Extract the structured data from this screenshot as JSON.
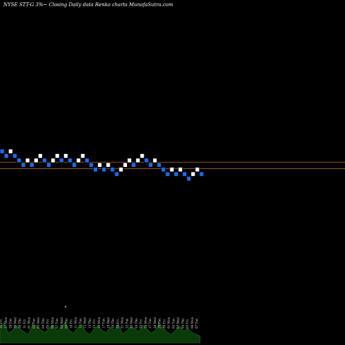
{
  "header": {
    "title": "NYSE STT-G 3%~  Closing Daily data  Renko  charts MunafaSutra.com"
  },
  "colors": {
    "background": "#000000",
    "up_brick": "#ffffff",
    "down_brick": "#1a6cf0",
    "brick_outline": "#000000",
    "ref_line": "#c8782a",
    "volume_fill": "#0a3a0a",
    "volume_edge": "#1e6e1e"
  },
  "chart_data": {
    "type": "renko",
    "brick_size": 1,
    "bricks": [
      {
        "level": 10,
        "dir": "down"
      },
      {
        "level": 9,
        "dir": "down"
      },
      {
        "level": 10,
        "dir": "up"
      },
      {
        "level": 9,
        "dir": "down"
      },
      {
        "level": 8,
        "dir": "down"
      },
      {
        "level": 7,
        "dir": "down"
      },
      {
        "level": 8,
        "dir": "up"
      },
      {
        "level": 7,
        "dir": "down"
      },
      {
        "level": 8,
        "dir": "up"
      },
      {
        "level": 9,
        "dir": "up"
      },
      {
        "level": 8,
        "dir": "down"
      },
      {
        "level": 7,
        "dir": "down"
      },
      {
        "level": 8,
        "dir": "up"
      },
      {
        "level": 9,
        "dir": "up"
      },
      {
        "level": 8,
        "dir": "down"
      },
      {
        "level": 9,
        "dir": "up"
      },
      {
        "level": 8,
        "dir": "down"
      },
      {
        "level": 7,
        "dir": "down"
      },
      {
        "level": 8,
        "dir": "up"
      },
      {
        "level": 9,
        "dir": "up"
      },
      {
        "level": 8,
        "dir": "down"
      },
      {
        "level": 7,
        "dir": "down"
      },
      {
        "level": 6,
        "dir": "down"
      },
      {
        "level": 7,
        "dir": "up"
      },
      {
        "level": 6,
        "dir": "down"
      },
      {
        "level": 7,
        "dir": "up"
      },
      {
        "level": 6,
        "dir": "down"
      },
      {
        "level": 5,
        "dir": "down"
      },
      {
        "level": 6,
        "dir": "up"
      },
      {
        "level": 7,
        "dir": "up"
      },
      {
        "level": 8,
        "dir": "up"
      },
      {
        "level": 7,
        "dir": "down"
      },
      {
        "level": 8,
        "dir": "up"
      },
      {
        "level": 9,
        "dir": "up"
      },
      {
        "level": 8,
        "dir": "down"
      },
      {
        "level": 7,
        "dir": "down"
      },
      {
        "level": 8,
        "dir": "up"
      },
      {
        "level": 7,
        "dir": "down"
      },
      {
        "level": 6,
        "dir": "down"
      },
      {
        "level": 5,
        "dir": "down"
      },
      {
        "level": 6,
        "dir": "up"
      },
      {
        "level": 5,
        "dir": "down"
      },
      {
        "level": 6,
        "dir": "up"
      },
      {
        "level": 5,
        "dir": "down"
      },
      {
        "level": 4,
        "dir": "down"
      },
      {
        "level": 5,
        "dir": "up"
      },
      {
        "level": 6,
        "dir": "up"
      },
      {
        "level": 5,
        "dir": "down"
      }
    ],
    "reference_lines": [
      {
        "level": 8.1
      },
      {
        "level": 6.7
      }
    ],
    "volume": [
      22,
      30,
      14,
      18,
      25,
      20,
      16,
      12,
      28,
      24,
      19,
      15,
      21,
      26,
      17,
      23,
      30,
      18,
      14,
      22,
      27,
      16,
      12,
      20,
      25,
      18,
      15,
      23,
      19,
      28,
      13,
      17,
      24,
      21,
      16,
      26,
      20,
      14,
      18,
      29,
      22,
      15,
      12,
      19,
      24,
      17,
      21,
      15,
      13,
      10
    ],
    "volume_outlier": {
      "index": 16,
      "value": 72
    },
    "date_labels": [
      "26 Fri",
      "27 Mon",
      "28 Tue",
      "29 Wed",
      "30 Thu",
      "31 Fri",
      "01 Mon",
      "02 Tue",
      "03 Wed",
      "04 Thu",
      "05 Fri",
      "06 Mon",
      "07 Tue",
      "08 Wed",
      "09 Thu",
      "10 Fri",
      "11 Mon",
      "12 Tue",
      "13 Wed",
      "14 Thu",
      "15 Fri",
      "16 Mon",
      "17 Tue",
      "18 Wed",
      "19 Thu",
      "20 Fri",
      "21 Mon",
      "22 Tue",
      "23 Wed",
      "24 Thu",
      "25 Fri",
      "26 Mon",
      "27 Tue",
      "28 Wed",
      "29 Thu",
      "30 Fri",
      "01 Mon",
      "02 Tue",
      "03 Wed",
      "04 Thu",
      "05 Fri",
      "06 Mon",
      "07 Tue"
    ]
  }
}
